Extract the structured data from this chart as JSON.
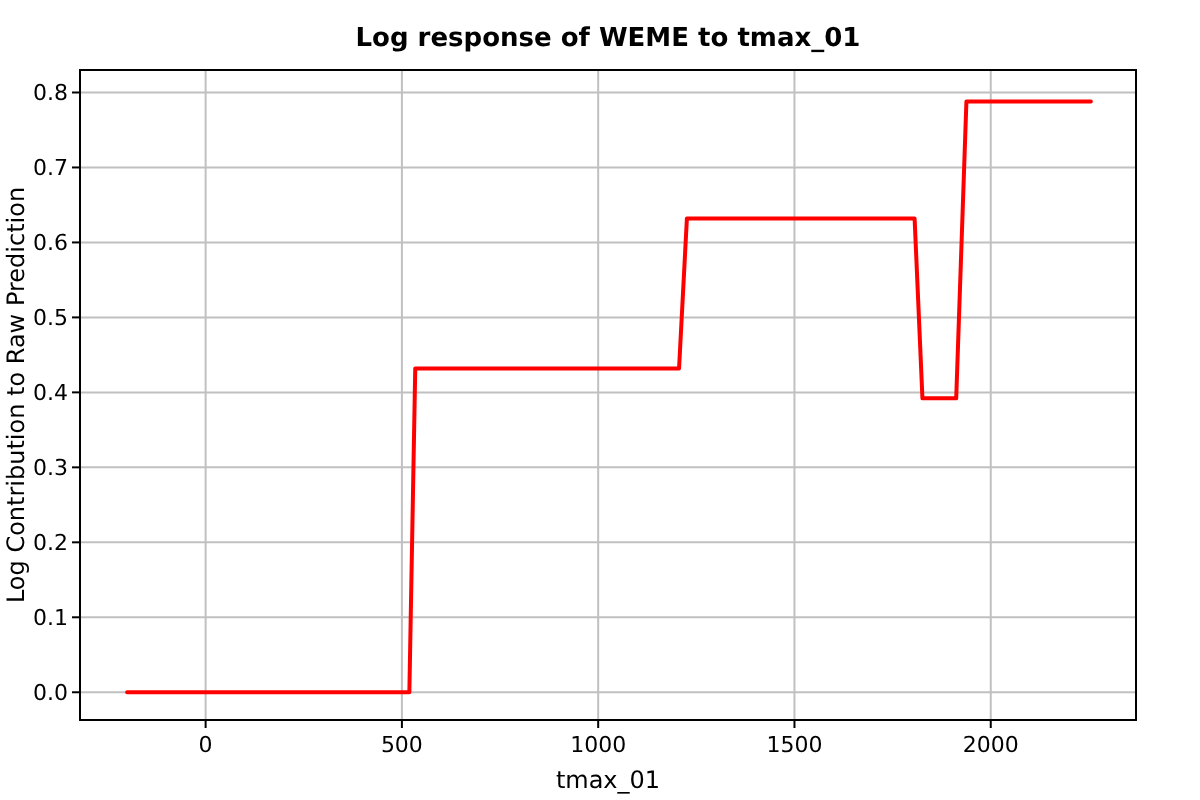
{
  "chart_data": {
    "type": "line",
    "title": "Log response of WEME to tmax_01",
    "xlabel": "tmax_01",
    "ylabel": "Log Contribution to Raw Prediction",
    "x": [
      -200,
      519,
      534,
      1206,
      1226,
      1806,
      1826,
      1912,
      1938,
      2255
    ],
    "series": [
      {
        "color": "#ff0000",
        "values": [
          0,
          0,
          0.432,
          0.432,
          0.632,
          0.632,
          0.392,
          0.392,
          0.788,
          0.788
        ]
      }
    ],
    "xlim": [
      -320,
      2370
    ],
    "ylim": [
      -0.037,
      0.83
    ],
    "xticks": [
      0,
      500,
      1000,
      1500,
      2000
    ],
    "yticks": [
      {
        "value": 0,
        "label": "0.0"
      },
      0.1,
      0.2,
      0.3,
      0.4,
      0.5,
      0.6,
      0.7,
      0.8
    ],
    "grid": true,
    "line_style": "solid"
  }
}
